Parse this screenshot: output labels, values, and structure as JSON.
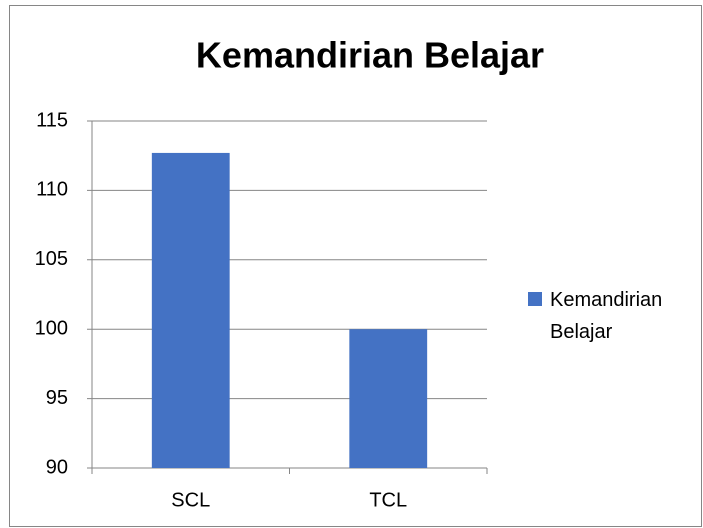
{
  "chart_data": {
    "type": "bar",
    "title": "Kemandirian Belajar",
    "categories": [
      "SCL",
      "TCL"
    ],
    "series": [
      {
        "name": "Kemandirian Belajar",
        "color": "#4472c4",
        "values": [
          112.7,
          100
        ]
      }
    ],
    "ylim": [
      90,
      115
    ],
    "yticks": [
      90,
      95,
      100,
      105,
      110,
      115
    ],
    "grid": true,
    "legend": "right"
  }
}
